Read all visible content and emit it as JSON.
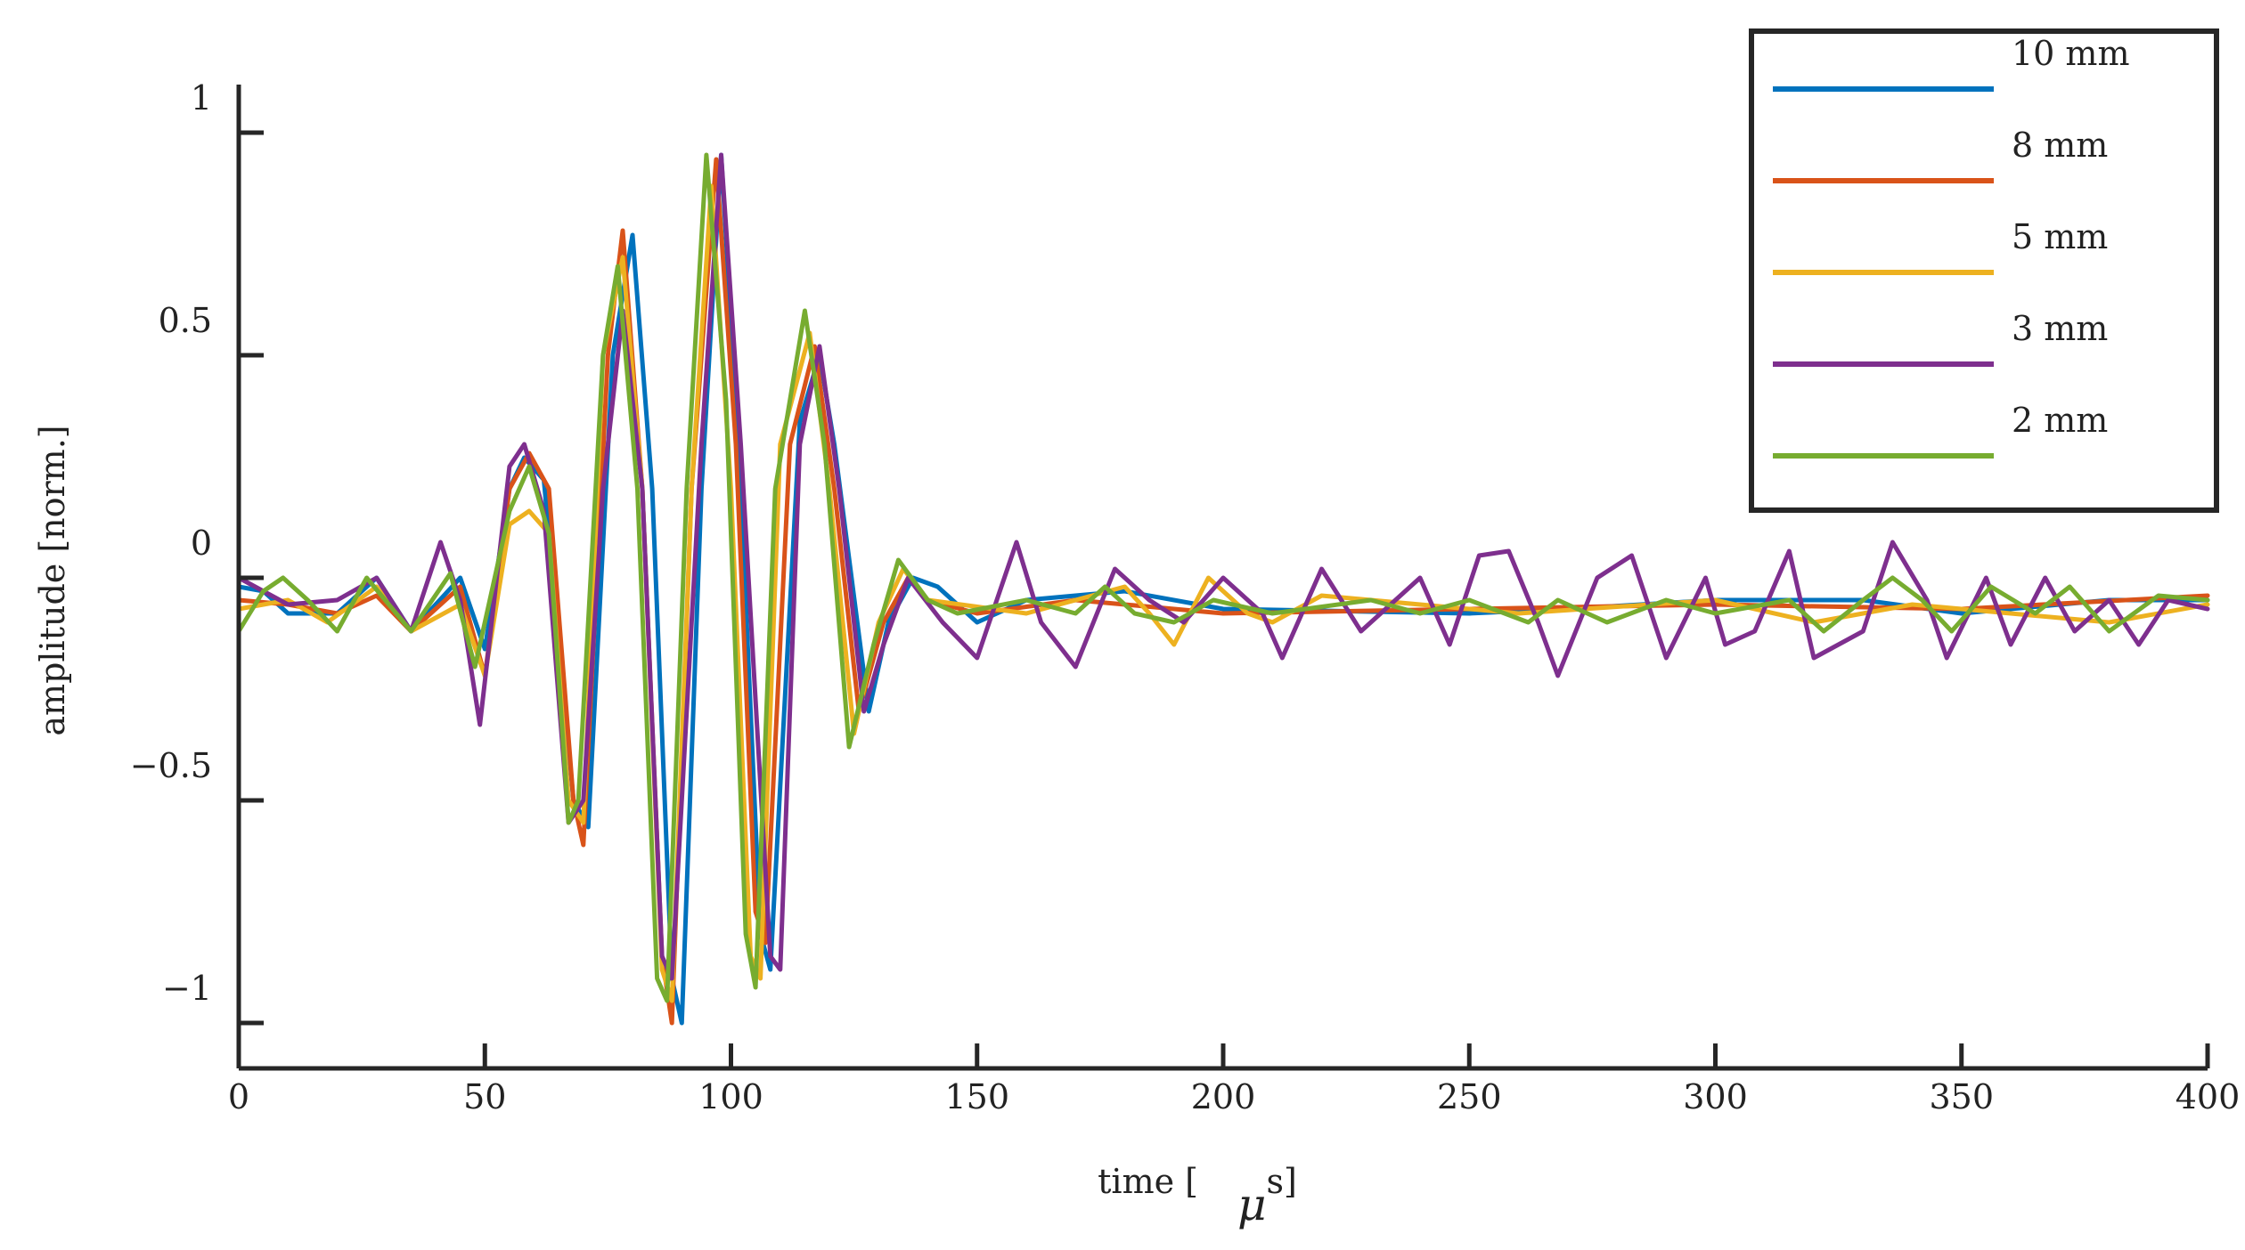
{
  "chart_data": {
    "type": "line",
    "title": "",
    "xlabel_prefix": "time [",
    "xlabel_mu": "μ",
    "xlabel_suffix": "s]",
    "ylabel": "amplitude [norm.]",
    "xlim": [
      0,
      400
    ],
    "ylim": [
      -1.1,
      1.1
    ],
    "x_ticks": [
      {
        "value": 0,
        "label": "0"
      },
      {
        "value": 50,
        "label": "50"
      },
      {
        "value": 100,
        "label": "100"
      },
      {
        "value": 150,
        "label": "150"
      },
      {
        "value": 200,
        "label": "200"
      },
      {
        "value": 250,
        "label": "250"
      },
      {
        "value": 300,
        "label": "300"
      },
      {
        "value": 350,
        "label": "350"
      },
      {
        "value": 400,
        "label": "400"
      }
    ],
    "y_ticks": [
      {
        "value": 1,
        "label": "1"
      },
      {
        "value": 0.5,
        "label": "0.5"
      },
      {
        "value": 0,
        "label": "0"
      },
      {
        "value": -0.5,
        "label": "−0.5"
      },
      {
        "value": -1,
        "label": "−1"
      }
    ],
    "grid": false,
    "legend_position": "top-right",
    "series": [
      {
        "name": "10 mm",
        "color": "#0072BD",
        "points": [
          [
            0,
            -0.02
          ],
          [
            5,
            -0.03
          ],
          [
            10,
            -0.08
          ],
          [
            20,
            -0.08
          ],
          [
            28,
            0.0
          ],
          [
            35,
            -0.12
          ],
          [
            45,
            0.0
          ],
          [
            50,
            -0.16
          ],
          [
            55,
            0.2
          ],
          [
            58,
            0.27
          ],
          [
            62,
            0.22
          ],
          [
            68,
            -0.5
          ],
          [
            71,
            -0.56
          ],
          [
            76,
            0.5
          ],
          [
            80,
            0.77
          ],
          [
            84,
            0.2
          ],
          [
            88,
            -0.9
          ],
          [
            90,
            -1.0
          ],
          [
            94,
            0.2
          ],
          [
            98,
            0.95
          ],
          [
            102,
            0.2
          ],
          [
            106,
            -0.8
          ],
          [
            108,
            -0.88
          ],
          [
            114,
            0.35
          ],
          [
            118,
            0.5
          ],
          [
            121,
            0.3
          ],
          [
            128,
            -0.3
          ],
          [
            132,
            -0.1
          ],
          [
            137,
            0.0
          ],
          [
            142,
            -0.02
          ],
          [
            150,
            -0.1
          ],
          [
            160,
            -0.05
          ],
          [
            180,
            -0.03
          ],
          [
            200,
            -0.07
          ],
          [
            250,
            -0.08
          ],
          [
            270,
            -0.07
          ],
          [
            300,
            -0.05
          ],
          [
            330,
            -0.05
          ],
          [
            350,
            -0.08
          ],
          [
            380,
            -0.05
          ],
          [
            400,
            -0.05
          ]
        ]
      },
      {
        "name": "8 mm",
        "color": "#D95319",
        "points": [
          [
            0,
            -0.05
          ],
          [
            10,
            -0.06
          ],
          [
            20,
            -0.08
          ],
          [
            28,
            -0.04
          ],
          [
            35,
            -0.12
          ],
          [
            45,
            -0.02
          ],
          [
            50,
            -0.22
          ],
          [
            55,
            0.2
          ],
          [
            59,
            0.28
          ],
          [
            63,
            0.2
          ],
          [
            68,
            -0.5
          ],
          [
            70,
            -0.6
          ],
          [
            75,
            0.5
          ],
          [
            78,
            0.78
          ],
          [
            82,
            0.2
          ],
          [
            86,
            -0.85
          ],
          [
            88,
            -1.0
          ],
          [
            92,
            0.2
          ],
          [
            97,
            0.94
          ],
          [
            101,
            0.3
          ],
          [
            105,
            -0.75
          ],
          [
            107,
            -0.82
          ],
          [
            112,
            0.3
          ],
          [
            117,
            0.52
          ],
          [
            121,
            0.2
          ],
          [
            126,
            -0.3
          ],
          [
            131,
            -0.1
          ],
          [
            136,
            0.0
          ],
          [
            140,
            -0.05
          ],
          [
            150,
            -0.08
          ],
          [
            170,
            -0.05
          ],
          [
            200,
            -0.08
          ],
          [
            250,
            -0.07
          ],
          [
            300,
            -0.06
          ],
          [
            350,
            -0.07
          ],
          [
            400,
            -0.04
          ]
        ]
      },
      {
        "name": "5 mm",
        "color": "#EDB120",
        "points": [
          [
            0,
            -0.07
          ],
          [
            10,
            -0.05
          ],
          [
            18,
            -0.1
          ],
          [
            28,
            -0.02
          ],
          [
            35,
            -0.12
          ],
          [
            45,
            -0.06
          ],
          [
            50,
            -0.22
          ],
          [
            55,
            0.12
          ],
          [
            59,
            0.15
          ],
          [
            63,
            0.1
          ],
          [
            67,
            -0.5
          ],
          [
            70,
            -0.55
          ],
          [
            74,
            0.5
          ],
          [
            78,
            0.72
          ],
          [
            82,
            0.2
          ],
          [
            86,
            -0.88
          ],
          [
            88,
            -0.95
          ],
          [
            92,
            0.2
          ],
          [
            96,
            0.88
          ],
          [
            100,
            0.2
          ],
          [
            104,
            -0.85
          ],
          [
            106,
            -0.9
          ],
          [
            110,
            0.3
          ],
          [
            116,
            0.55
          ],
          [
            120,
            0.2
          ],
          [
            125,
            -0.35
          ],
          [
            130,
            -0.1
          ],
          [
            135,
            0.02
          ],
          [
            140,
            -0.05
          ],
          [
            160,
            -0.08
          ],
          [
            170,
            -0.05
          ],
          [
            180,
            -0.02
          ],
          [
            185,
            -0.08
          ],
          [
            190,
            -0.15
          ],
          [
            197,
            0.0
          ],
          [
            205,
            -0.08
          ],
          [
            210,
            -0.1
          ],
          [
            220,
            -0.04
          ],
          [
            240,
            -0.06
          ],
          [
            260,
            -0.08
          ],
          [
            300,
            -0.05
          ],
          [
            320,
            -0.1
          ],
          [
            340,
            -0.06
          ],
          [
            360,
            -0.08
          ],
          [
            380,
            -0.1
          ],
          [
            400,
            -0.06
          ]
        ]
      },
      {
        "name": "3 mm",
        "color": "#7E2F8E",
        "points": [
          [
            0,
            0.0
          ],
          [
            5,
            -0.03
          ],
          [
            10,
            -0.06
          ],
          [
            20,
            -0.05
          ],
          [
            28,
            0.0
          ],
          [
            35,
            -0.12
          ],
          [
            41,
            0.08
          ],
          [
            45,
            -0.05
          ],
          [
            49,
            -0.33
          ],
          [
            55,
            0.25
          ],
          [
            58,
            0.3
          ],
          [
            62,
            0.15
          ],
          [
            67,
            -0.55
          ],
          [
            70,
            -0.5
          ],
          [
            74,
            0.2
          ],
          [
            78,
            0.6
          ],
          [
            82,
            0.2
          ],
          [
            86,
            -0.85
          ],
          [
            88,
            -0.9
          ],
          [
            94,
            0.3
          ],
          [
            98,
            0.95
          ],
          [
            102,
            0.3
          ],
          [
            108,
            -0.85
          ],
          [
            110,
            -0.88
          ],
          [
            114,
            0.3
          ],
          [
            118,
            0.52
          ],
          [
            122,
            0.2
          ],
          [
            127,
            -0.3
          ],
          [
            131,
            -0.15
          ],
          [
            136,
            0.0
          ],
          [
            143,
            -0.1
          ],
          [
            150,
            -0.18
          ],
          [
            158,
            0.08
          ],
          [
            163,
            -0.1
          ],
          [
            170,
            -0.2
          ],
          [
            178,
            0.02
          ],
          [
            185,
            -0.05
          ],
          [
            192,
            -0.1
          ],
          [
            200,
            0.0
          ],
          [
            208,
            -0.08
          ],
          [
            212,
            -0.18
          ],
          [
            220,
            0.02
          ],
          [
            228,
            -0.12
          ],
          [
            235,
            -0.05
          ],
          [
            240,
            0.0
          ],
          [
            246,
            -0.15
          ],
          [
            252,
            0.05
          ],
          [
            258,
            0.06
          ],
          [
            264,
            -0.1
          ],
          [
            268,
            -0.22
          ],
          [
            276,
            0.0
          ],
          [
            283,
            0.05
          ],
          [
            290,
            -0.18
          ],
          [
            298,
            0.0
          ],
          [
            302,
            -0.15
          ],
          [
            308,
            -0.12
          ],
          [
            315,
            0.06
          ],
          [
            320,
            -0.18
          ],
          [
            330,
            -0.12
          ],
          [
            336,
            0.08
          ],
          [
            343,
            -0.05
          ],
          [
            347,
            -0.18
          ],
          [
            355,
            0.0
          ],
          [
            360,
            -0.15
          ],
          [
            367,
            0.0
          ],
          [
            373,
            -0.12
          ],
          [
            380,
            -0.05
          ],
          [
            386,
            -0.15
          ],
          [
            392,
            -0.05
          ],
          [
            400,
            -0.07
          ]
        ]
      },
      {
        "name": "2 mm",
        "color": "#77AC30",
        "points": [
          [
            0,
            -0.12
          ],
          [
            5,
            -0.03
          ],
          [
            9,
            0.0
          ],
          [
            14,
            -0.05
          ],
          [
            20,
            -0.12
          ],
          [
            26,
            0.0
          ],
          [
            35,
            -0.12
          ],
          [
            43,
            0.01
          ],
          [
            48,
            -0.2
          ],
          [
            55,
            0.15
          ],
          [
            59,
            0.25
          ],
          [
            63,
            0.1
          ],
          [
            67,
            -0.55
          ],
          [
            69,
            -0.5
          ],
          [
            74,
            0.5
          ],
          [
            77,
            0.7
          ],
          [
            81,
            0.2
          ],
          [
            85,
            -0.9
          ],
          [
            87,
            -0.95
          ],
          [
            91,
            0.2
          ],
          [
            95,
            0.95
          ],
          [
            99,
            0.4
          ],
          [
            103,
            -0.8
          ],
          [
            105,
            -0.92
          ],
          [
            109,
            0.2
          ],
          [
            115,
            0.6
          ],
          [
            119,
            0.3
          ],
          [
            124,
            -0.38
          ],
          [
            129,
            -0.15
          ],
          [
            134,
            0.04
          ],
          [
            140,
            -0.05
          ],
          [
            146,
            -0.08
          ],
          [
            160,
            -0.05
          ],
          [
            170,
            -0.08
          ],
          [
            176,
            -0.02
          ],
          [
            182,
            -0.08
          ],
          [
            190,
            -0.1
          ],
          [
            198,
            -0.05
          ],
          [
            210,
            -0.08
          ],
          [
            230,
            -0.05
          ],
          [
            240,
            -0.08
          ],
          [
            250,
            -0.05
          ],
          [
            262,
            -0.1
          ],
          [
            268,
            -0.05
          ],
          [
            278,
            -0.1
          ],
          [
            290,
            -0.05
          ],
          [
            300,
            -0.08
          ],
          [
            315,
            -0.05
          ],
          [
            322,
            -0.12
          ],
          [
            330,
            -0.05
          ],
          [
            336,
            0.0
          ],
          [
            342,
            -0.05
          ],
          [
            348,
            -0.12
          ],
          [
            356,
            -0.02
          ],
          [
            365,
            -0.08
          ],
          [
            372,
            -0.02
          ],
          [
            380,
            -0.12
          ],
          [
            390,
            -0.04
          ],
          [
            400,
            -0.05
          ]
        ]
      }
    ]
  }
}
